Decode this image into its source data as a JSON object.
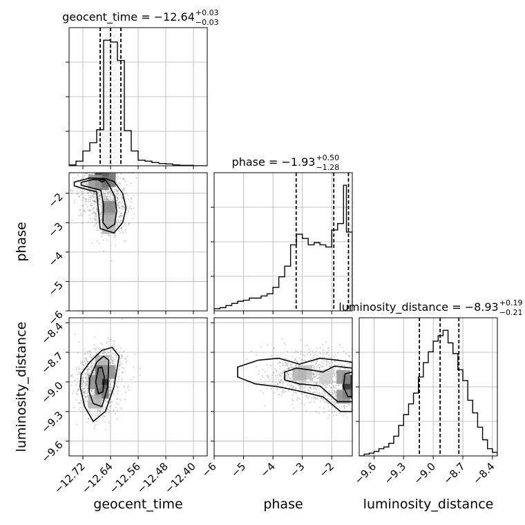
{
  "chart_data": {
    "type": "corner",
    "parameters": [
      "geocent_time",
      "phase",
      "luminosity_distance"
    ],
    "axis_labels": {
      "geocent_time": "geocent_time",
      "phase": "phase",
      "luminosity_distance": "luminosity_distance"
    },
    "ranges": {
      "geocent_time": [
        -12.76,
        -12.36
      ],
      "phase": [
        -6.0,
        -1.3
      ],
      "luminosity_distance": [
        -9.75,
        -8.35
      ]
    },
    "ticks": {
      "geocent_time": [
        -12.72,
        -12.64,
        -12.56,
        -12.48,
        -12.4
      ],
      "phase": [
        -6,
        -5,
        -4,
        -3,
        -2
      ],
      "luminosity_distance": [
        -9.6,
        -9.3,
        -9.0,
        -8.7,
        -8.4
      ]
    },
    "tick_labels": {
      "geocent_time": [
        "−12.72",
        "−12.64",
        "−12.56",
        "−12.48",
        "−12.40"
      ],
      "phase": [
        "−6",
        "−5",
        "−4",
        "−3",
        "−2"
      ],
      "luminosity_distance": [
        "−9.6",
        "−9.3",
        "−9.0",
        "−8.7",
        "−8.4"
      ]
    },
    "titles": {
      "geocent_time": {
        "label": "geocent_time = −12.64",
        "plus": "+0.03",
        "minus": "−0.03"
      },
      "phase": {
        "label": "phase = −1.93",
        "plus": "+0.50",
        "minus": "−1.28"
      },
      "luminosity_distance": {
        "label": "luminosity_distance = −8.93",
        "plus": "+0.19",
        "minus": "−0.21"
      }
    },
    "quantiles": {
      "geocent_time": [
        -12.67,
        -12.64,
        -12.61
      ],
      "phase": [
        -3.21,
        -1.93,
        -1.43
      ],
      "luminosity_distance": [
        -9.14,
        -8.93,
        -8.74
      ]
    },
    "histograms": {
      "geocent_time": {
        "edges": [
          -12.76,
          -12.74,
          -12.72,
          -12.7,
          -12.68,
          -12.66,
          -12.64,
          -12.62,
          -12.6,
          -12.58,
          -12.56,
          -12.54,
          -12.52,
          -12.5,
          -12.48,
          -12.46,
          -12.44,
          -12.42,
          -12.4,
          -12.38,
          -12.36
        ],
        "counts": [
          2,
          10,
          32,
          50,
          78,
          272,
          268,
          228,
          76,
          32,
          12,
          10,
          7,
          5,
          4,
          2,
          1,
          1,
          0,
          0
        ]
      },
      "phase": {
        "edges": [
          -6.0,
          -5.8,
          -5.6,
          -5.4,
          -5.2,
          -5.0,
          -4.8,
          -4.6,
          -4.4,
          -4.2,
          -4.0,
          -3.8,
          -3.6,
          -3.4,
          -3.2,
          -3.0,
          -2.8,
          -2.6,
          -2.4,
          -2.2,
          -2.0,
          -1.8,
          -1.6,
          -1.5,
          -1.3
        ],
        "counts": [
          2,
          3,
          5,
          7,
          9,
          10,
          12,
          12,
          14,
          16,
          22,
          32,
          42,
          62,
          72,
          68,
          62,
          64,
          62,
          60,
          76,
          82,
          118,
          74
        ]
      },
      "luminosity_distance": {
        "edges": [
          -9.75,
          -9.7,
          -9.65,
          -9.6,
          -9.55,
          -9.5,
          -9.45,
          -9.4,
          -9.35,
          -9.3,
          -9.25,
          -9.2,
          -9.15,
          -9.1,
          -9.05,
          -9.0,
          -8.95,
          -8.9,
          -8.85,
          -8.8,
          -8.75,
          -8.7,
          -8.65,
          -8.6,
          -8.55,
          -8.5,
          -8.45,
          -8.4,
          -8.35
        ],
        "counts": [
          0,
          2,
          3,
          5,
          8,
          10,
          14,
          22,
          34,
          46,
          58,
          70,
          88,
          104,
          116,
          128,
          134,
          140,
          126,
          114,
          96,
          84,
          62,
          48,
          32,
          18,
          8,
          4
        ]
      }
    },
    "contours": {
      "phase|geocent_time": {
        "density_bins": [
          [
            -12.665,
            -1.55,
            0.9
          ],
          [
            -12.645,
            -1.55,
            0.6
          ],
          [
            -12.665,
            -1.65,
            0.55
          ],
          [
            -12.685,
            -1.6,
            0.4
          ],
          [
            -12.645,
            -2.5,
            0.5
          ],
          [
            -12.645,
            -2.9,
            0.35
          ],
          [
            -12.645,
            -3.15,
            0.3
          ]
        ],
        "levels": [
          [
            [
              -12.745,
              -1.62
            ],
            [
              -12.7,
              -1.48
            ],
            [
              -12.655,
              -1.5
            ],
            [
              -12.63,
              -1.6
            ],
            [
              -12.605,
              -2.0
            ],
            [
              -12.595,
              -2.5
            ],
            [
              -12.605,
              -3.0
            ],
            [
              -12.63,
              -3.35
            ],
            [
              -12.67,
              -3.2
            ],
            [
              -12.675,
              -2.6
            ],
            [
              -12.68,
              -1.95
            ],
            [
              -12.715,
              -1.85
            ],
            [
              -12.745,
              -1.75
            ]
          ],
          [
            [
              -12.725,
              -1.63
            ],
            [
              -12.69,
              -1.53
            ],
            [
              -12.655,
              -1.55
            ],
            [
              -12.645,
              -1.7
            ],
            [
              -12.628,
              -2.1
            ],
            [
              -12.622,
              -2.6
            ],
            [
              -12.628,
              -3.05
            ],
            [
              -12.648,
              -3.2
            ],
            [
              -12.662,
              -3.0
            ],
            [
              -12.66,
              -2.4
            ],
            [
              -12.668,
              -1.9
            ],
            [
              -12.7,
              -1.8
            ],
            [
              -12.725,
              -1.72
            ]
          ],
          [
            [
              -12.675,
              -1.55
            ],
            [
              -12.665,
              -1.5
            ],
            [
              -12.655,
              -1.56
            ],
            [
              -12.665,
              -1.62
            ]
          ]
        ]
      },
      "luminosity_distance|geocent_time": {
        "density_bins": [
          [
            -12.665,
            -8.8,
            0.3
          ],
          [
            -12.665,
            -8.9,
            0.6
          ],
          [
            -12.665,
            -9.0,
            0.9
          ],
          [
            -12.665,
            -9.1,
            0.6
          ],
          [
            -12.685,
            -9.0,
            0.45
          ],
          [
            -12.645,
            -8.9,
            0.45
          ],
          [
            -12.685,
            -9.2,
            0.3
          ]
        ],
        "levels": [
          [
            [
              -12.725,
              -8.92
            ],
            [
              -12.7,
              -8.8
            ],
            [
              -12.665,
              -8.68
            ],
            [
              -12.635,
              -8.65
            ],
            [
              -12.615,
              -8.74
            ],
            [
              -12.63,
              -9.05
            ],
            [
              -12.655,
              -9.3
            ],
            [
              -12.69,
              -9.4
            ],
            [
              -12.715,
              -9.25
            ],
            [
              -12.728,
              -9.05
            ]
          ],
          [
            [
              -12.7,
              -8.96
            ],
            [
              -12.68,
              -8.8
            ],
            [
              -12.66,
              -8.74
            ],
            [
              -12.645,
              -8.78
            ],
            [
              -12.648,
              -9.05
            ],
            [
              -12.665,
              -9.25
            ],
            [
              -12.69,
              -9.22
            ],
            [
              -12.702,
              -9.1
            ]
          ],
          [
            [
              -12.683,
              -9.0
            ],
            [
              -12.675,
              -8.86
            ],
            [
              -12.665,
              -8.85
            ],
            [
              -12.658,
              -8.95
            ],
            [
              -12.662,
              -9.1
            ],
            [
              -12.675,
              -9.12
            ]
          ]
        ]
      },
      "luminosity_distance|phase": {
        "density_bins": [
          [
            -1.4,
            -9.0,
            0.9
          ],
          [
            -1.4,
            -9.1,
            0.75
          ],
          [
            -1.6,
            -8.95,
            0.45
          ],
          [
            -1.6,
            -9.15,
            0.45
          ],
          [
            -2.9,
            -8.9,
            0.25
          ],
          [
            -3.1,
            -8.92,
            0.3
          ],
          [
            -2.2,
            -8.95,
            0.2
          ]
        ],
        "levels": [
          [
            [
              -5.2,
              -8.85
            ],
            [
              -4.5,
              -8.78
            ],
            [
              -3.8,
              -8.76
            ],
            [
              -3.1,
              -8.82
            ],
            [
              -2.4,
              -8.76
            ],
            [
              -1.8,
              -8.78
            ],
            [
              -1.3,
              -8.8
            ],
            [
              -1.3,
              -9.3
            ],
            [
              -1.7,
              -9.3
            ],
            [
              -2.3,
              -9.15
            ],
            [
              -3.0,
              -9.1
            ],
            [
              -3.8,
              -9.05
            ],
            [
              -4.6,
              -9.02
            ],
            [
              -5.2,
              -8.95
            ]
          ],
          [
            [
              -3.6,
              -8.9
            ],
            [
              -3.2,
              -8.86
            ],
            [
              -2.7,
              -8.88
            ],
            [
              -2.3,
              -8.9
            ],
            [
              -1.9,
              -8.84
            ],
            [
              -1.3,
              -8.86
            ],
            [
              -1.3,
              -9.2
            ],
            [
              -1.8,
              -9.2
            ],
            [
              -2.4,
              -9.04
            ],
            [
              -3.1,
              -9.02
            ],
            [
              -3.6,
              -8.98
            ]
          ],
          [
            [
              -1.3,
              -8.9
            ],
            [
              -1.55,
              -8.92
            ],
            [
              -1.6,
              -9.05
            ],
            [
              -1.45,
              -9.15
            ],
            [
              -1.3,
              -9.15
            ]
          ]
        ]
      }
    }
  }
}
